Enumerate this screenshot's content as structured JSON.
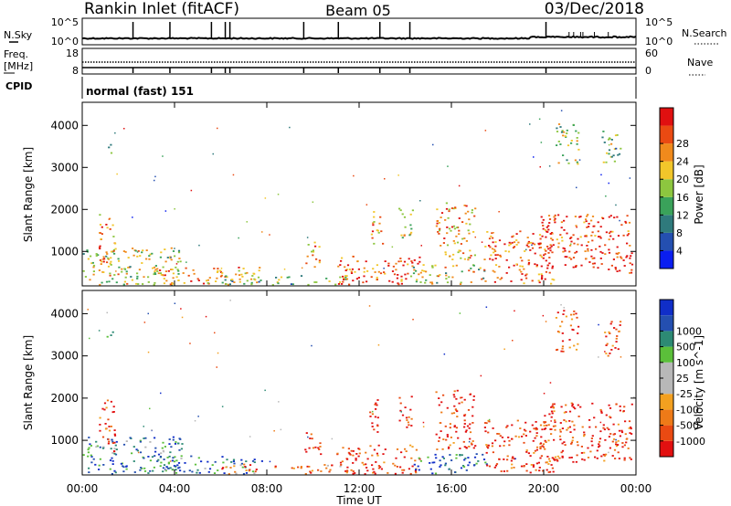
{
  "header": {
    "title": "Rankin Inlet (fitACF)",
    "beam": "Beam 05",
    "date": "03/Dec/2018"
  },
  "noise_panel": {
    "left_label": "N.Sky",
    "right_label": "N.Search",
    "left_ticks": [
      "10^5",
      "10^0"
    ],
    "right_ticks": [
      "10^5",
      "10^0"
    ],
    "spike_times_hours": [
      2.2,
      3.8,
      5.6,
      6.2,
      6.4,
      9.6,
      11.1,
      12.9,
      14.2,
      20.1
    ],
    "search_bumps_hours": [
      21.1,
      21.3,
      21.6,
      21.7,
      22.2,
      22.8
    ]
  },
  "freq_panel": {
    "left_label_line1": "Freq.",
    "left_label_line2": "[MHz]",
    "right_label": "Nave",
    "left_ticks": [
      "18",
      "8"
    ],
    "right_ticks": [
      "60",
      "0"
    ],
    "marker_times_hours": [
      2.2,
      3.8,
      5.6,
      6.2,
      6.4,
      9.6,
      11.1,
      12.9,
      14.2,
      20.1
    ]
  },
  "cpid_panel": {
    "label": "CPID",
    "text": "normal (fast) 151"
  },
  "colors": {
    "power_scale": [
      "#0a1ef0",
      "#244fb0",
      "#2f7a7c",
      "#3aa25a",
      "#8dc63f",
      "#f2c62a",
      "#f08a1c",
      "#ea4a12",
      "#e01010"
    ],
    "velocity_scale": [
      "#e21010",
      "#ea4a12",
      "#ee7a18",
      "#f3a020",
      "#b8b8b8",
      "#b8b8b8",
      "#5bbf3a",
      "#2d8a74",
      "#244fb0",
      "#102ec8"
    ]
  },
  "chart_data": [
    {
      "type": "heatmap",
      "name": "power",
      "xlabel": "",
      "ylabel": "Slant Range [km]",
      "x_unit": "hours UT",
      "xlim": [
        0,
        24
      ],
      "ylim": [
        180,
        4550
      ],
      "y_ticks": [
        1000,
        2000,
        3000,
        4000
      ],
      "x_ticks": [
        0,
        4,
        8,
        12,
        16,
        20,
        24
      ],
      "colorbar": {
        "label": "Power [dB]",
        "range": [
          0,
          32
        ],
        "ticks": [
          4,
          8,
          12,
          16,
          20,
          24,
          28
        ]
      },
      "echo_regions": [
        {
          "t0": 0.0,
          "t1": 4.3,
          "r0": 220,
          "r1": 1100,
          "value": 18
        },
        {
          "t0": 0.7,
          "t1": 1.4,
          "r0": 700,
          "r1": 2000,
          "value": 24
        },
        {
          "t0": 1.0,
          "t1": 1.3,
          "r0": 3300,
          "r1": 3600,
          "value": 14
        },
        {
          "t0": 3.0,
          "t1": 7.8,
          "r0": 220,
          "r1": 650,
          "value": 22
        },
        {
          "t0": 6.0,
          "t1": 11.6,
          "r0": 220,
          "r1": 450,
          "value": 14
        },
        {
          "t0": 9.6,
          "t1": 10.3,
          "r0": 650,
          "r1": 1250,
          "value": 24
        },
        {
          "t0": 11.0,
          "t1": 14.6,
          "r0": 220,
          "r1": 900,
          "value": 26
        },
        {
          "t0": 12.4,
          "t1": 13.0,
          "r0": 1200,
          "r1": 2000,
          "value": 22
        },
        {
          "t0": 13.7,
          "t1": 14.3,
          "r0": 1300,
          "r1": 2100,
          "value": 20
        },
        {
          "t0": 14.2,
          "t1": 17.5,
          "r0": 220,
          "r1": 700,
          "value": 18
        },
        {
          "t0": 15.3,
          "t1": 17.0,
          "r0": 800,
          "r1": 2200,
          "value": 22
        },
        {
          "t0": 17.4,
          "t1": 20.4,
          "r0": 250,
          "r1": 1500,
          "value": 26
        },
        {
          "t0": 19.8,
          "t1": 23.8,
          "r0": 500,
          "r1": 1900,
          "value": 28
        },
        {
          "t0": 22.5,
          "t1": 23.3,
          "r0": 3000,
          "r1": 3900,
          "value": 14
        },
        {
          "t0": 20.5,
          "t1": 21.5,
          "r0": 3100,
          "r1": 4100,
          "value": 16
        }
      ]
    },
    {
      "type": "heatmap",
      "name": "velocity",
      "xlabel": "Time UT",
      "ylabel": "Slant Range [km]",
      "x_unit": "hours UT",
      "xlim": [
        0,
        24
      ],
      "ylim": [
        180,
        4550
      ],
      "y_ticks": [
        1000,
        2000,
        3000,
        4000
      ],
      "x_ticks": [
        0,
        4,
        8,
        12,
        16,
        20,
        24
      ],
      "x_tick_labels": [
        "00:00",
        "04:00",
        "08:00",
        "12:00",
        "16:00",
        "20:00",
        "00:00"
      ],
      "colorbar": {
        "label": "Velocity [m s^-1]",
        "tick_labels": [
          "1000",
          "500",
          "100",
          "25",
          "-25",
          "-100",
          "-500",
          "-1000"
        ]
      },
      "echo_regions": [
        {
          "t0": 0.0,
          "t1": 4.3,
          "r0": 220,
          "r1": 1100,
          "value": 60
        },
        {
          "t0": 0.7,
          "t1": 1.4,
          "r0": 700,
          "r1": 2000,
          "value": -300
        },
        {
          "t0": 1.0,
          "t1": 1.3,
          "r0": 3300,
          "r1": 3600,
          "value": 150
        },
        {
          "t0": 3.0,
          "t1": 7.8,
          "r0": 220,
          "r1": 650,
          "value": 80
        },
        {
          "t0": 6.0,
          "t1": 11.6,
          "r0": 220,
          "r1": 450,
          "value": -60
        },
        {
          "t0": 9.6,
          "t1": 10.3,
          "r0": 650,
          "r1": 1250,
          "value": -120
        },
        {
          "t0": 11.0,
          "t1": 14.6,
          "r0": 220,
          "r1": 900,
          "value": -250
        },
        {
          "t0": 12.4,
          "t1": 13.0,
          "r0": 1200,
          "r1": 2000,
          "value": -600
        },
        {
          "t0": 13.7,
          "t1": 14.3,
          "r0": 1300,
          "r1": 2100,
          "value": -700
        },
        {
          "t0": 14.2,
          "t1": 17.5,
          "r0": 220,
          "r1": 700,
          "value": 200
        },
        {
          "t0": 15.3,
          "t1": 17.0,
          "r0": 800,
          "r1": 2200,
          "value": -400
        },
        {
          "t0": 17.4,
          "t1": 20.4,
          "r0": 250,
          "r1": 1500,
          "value": -200
        },
        {
          "t0": 19.8,
          "t1": 23.8,
          "r0": 500,
          "r1": 1900,
          "value": -300
        },
        {
          "t0": 22.5,
          "t1": 23.3,
          "r0": 3000,
          "r1": 3900,
          "value": -200
        },
        {
          "t0": 20.5,
          "t1": 21.5,
          "r0": 3100,
          "r1": 4100,
          "value": -150
        }
      ]
    }
  ]
}
